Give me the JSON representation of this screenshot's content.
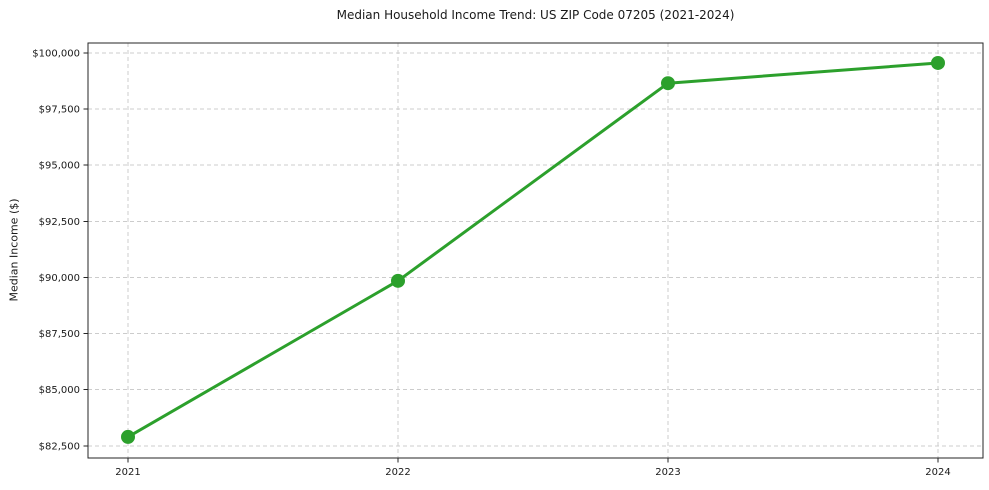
{
  "chart_data": {
    "type": "line",
    "title": "Median Household Income Trend: US ZIP Code 07205 (2021-2024)",
    "xlabel": "",
    "ylabel": "Median Income ($)",
    "x": [
      2021,
      2022,
      2023,
      2024
    ],
    "xtick_labels": [
      "2021",
      "2022",
      "2023",
      "2024"
    ],
    "series": [
      {
        "name": "Median Household Income",
        "values": [
          82900,
          89850,
          98650,
          99550
        ]
      }
    ],
    "ylim": [
      81960,
      100440
    ],
    "yticks": [
      82500,
      85000,
      87500,
      90000,
      92500,
      95000,
      97500,
      100000
    ],
    "ytick_labels": [
      "$82,500",
      "$85,000",
      "$87,500",
      "$90,000",
      "$92,500",
      "$95,000",
      "$97,500",
      "$100,000"
    ],
    "grid": true,
    "grid_style": "dashed",
    "legend": "none",
    "marker": "circle",
    "line_color": "#2ca02c"
  },
  "colors": {
    "line": "#2ca02c",
    "marker": "#2ca02c",
    "grid": "#cccccc",
    "axis": "#262626",
    "text": "#1a1a1a",
    "background": "#ffffff"
  }
}
